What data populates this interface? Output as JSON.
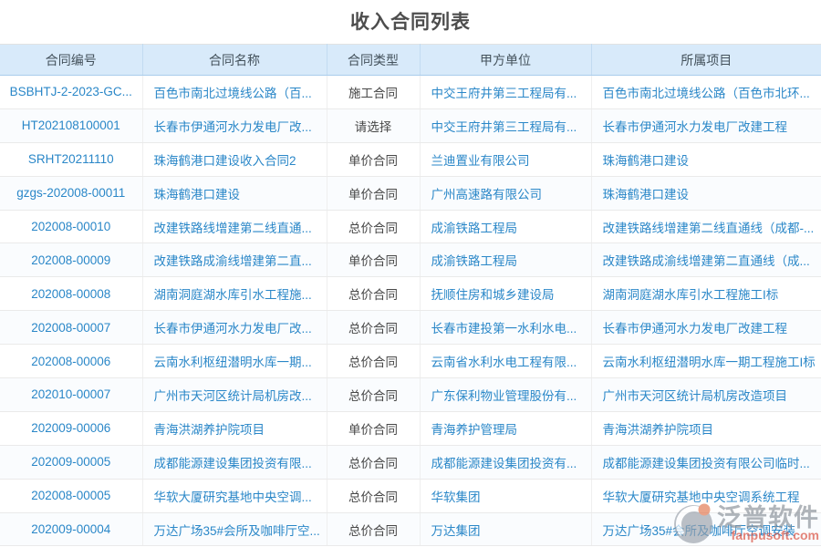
{
  "title": "收入合同列表",
  "colors": {
    "link_blue": "#2a87c8",
    "header_bg": "#d8eafa",
    "header_border_bottom": "#a9cdec",
    "row_border": "#eaeaea",
    "title_text": "#4d4d4d",
    "type_text": "#474747",
    "watermark_gray": "#8d949d",
    "watermark_red": "#dc5a4b"
  },
  "table": {
    "columns": [
      "合同编号",
      "合同名称",
      "合同类型",
      "甲方单位",
      "所属项目"
    ],
    "rows": [
      [
        "BSBHTJ-2-2023-GC...",
        "百色市南北过境线公路（百...",
        "施工合同",
        "中交王府井第三工程局有...",
        "百色市南北过境线公路（百色市北环..."
      ],
      [
        "HT202108100001",
        "长春市伊通河水力发电厂改...",
        "请选择",
        "中交王府井第三工程局有...",
        "长春市伊通河水力发电厂改建工程"
      ],
      [
        "SRHT20211110",
        "珠海鹤港口建设收入合同2",
        "单价合同",
        "兰迪置业有限公司",
        "珠海鹤港口建设"
      ],
      [
        "gzgs-202008-00011",
        "珠海鹤港口建设",
        "单价合同",
        "广州高速路有限公司",
        "珠海鹤港口建设"
      ],
      [
        "202008-00010",
        "改建铁路线增建第二线直通...",
        "总价合同",
        "成渝铁路工程局",
        "改建铁路线增建第二线直通线（成都-..."
      ],
      [
        "202008-00009",
        "改建铁路成渝线增建第二直...",
        "单价合同",
        "成渝铁路工程局",
        "改建铁路成渝线增建第二直通线（成..."
      ],
      [
        "202008-00008",
        "湖南洞庭湖水库引水工程施...",
        "总价合同",
        "抚顺住房和城乡建设局",
        "湖南洞庭湖水库引水工程施工I标"
      ],
      [
        "202008-00007",
        "长春市伊通河水力发电厂改...",
        "总价合同",
        "长春市建投第一水利水电...",
        "长春市伊通河水力发电厂改建工程"
      ],
      [
        "202008-00006",
        "云南水利枢纽潜明水库一期...",
        "总价合同",
        "云南省水利水电工程有限...",
        "云南水利枢纽潜明水库一期工程施工I标"
      ],
      [
        "202010-00007",
        "广州市天河区统计局机房改...",
        "总价合同",
        "广东保利物业管理股份有...",
        "广州市天河区统计局机房改造项目"
      ],
      [
        "202009-00006",
        "青海洪湖养护院项目",
        "单价合同",
        "青海养护管理局",
        "青海洪湖养护院项目"
      ],
      [
        "202009-00005",
        "成都能源建设集团投资有限...",
        "总价合同",
        "成都能源建设集团投资有...",
        "成都能源建设集团投资有限公司临时..."
      ],
      [
        "202008-00005",
        "华软大厦研究基地中央空调...",
        "总价合同",
        "华软集团",
        "华软大厦研究基地中央空调系统工程"
      ],
      [
        "202009-00004",
        "万达广场35#会所及咖啡厅空...",
        "总价合同",
        "万达集团",
        "万达广场35#会所及咖啡厅空调安装"
      ]
    ]
  },
  "watermark": {
    "brand": "泛普软件",
    "url": "fanpusoft.com"
  }
}
